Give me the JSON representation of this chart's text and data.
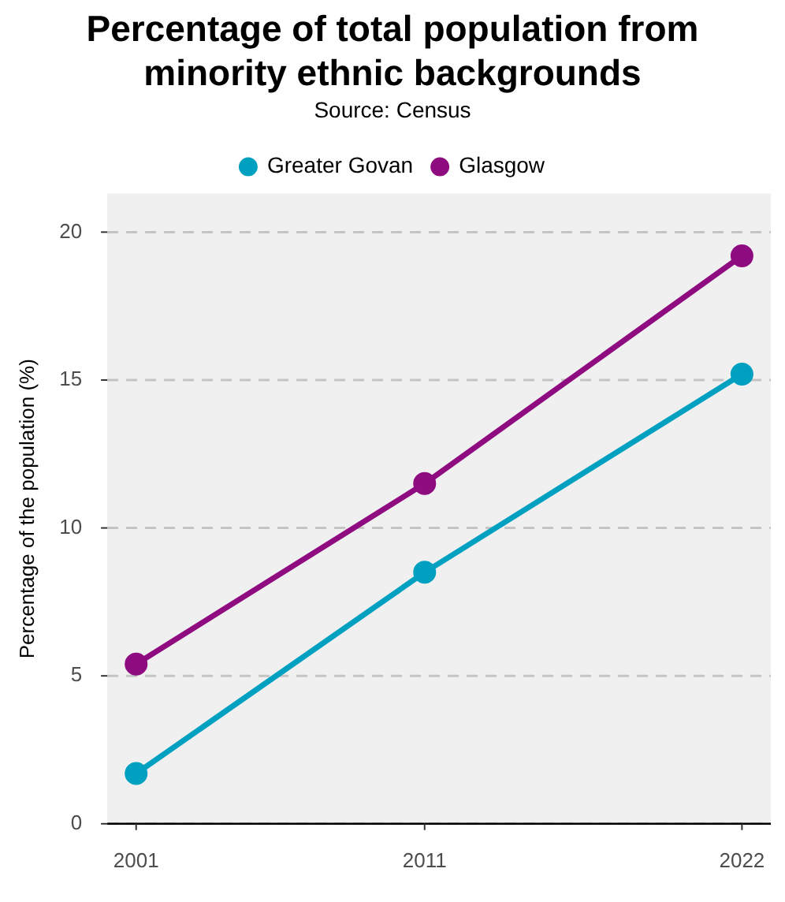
{
  "chart_data": {
    "type": "line",
    "title": "Percentage of total population from minority ethnic backgrounds",
    "subtitle": "Source: Census",
    "ylabel": "Percentage of the population (%)",
    "x": [
      2001,
      2011,
      2022
    ],
    "xlim": [
      2000,
      2023
    ],
    "xticks": [
      2001,
      2011,
      2022
    ],
    "ylim": [
      0,
      21.3
    ],
    "yticks": [
      0,
      5,
      10,
      15,
      20
    ],
    "series": [
      {
        "name": "Greater Govan",
        "color": "#00a0c0",
        "values": [
          1.7,
          8.5,
          15.2
        ]
      },
      {
        "name": "Glasgow",
        "color": "#8e0b80",
        "values": [
          5.4,
          11.5,
          19.2
        ]
      }
    ],
    "grid": "y",
    "legend": "top",
    "marker": "circle",
    "line_style": "solid"
  }
}
